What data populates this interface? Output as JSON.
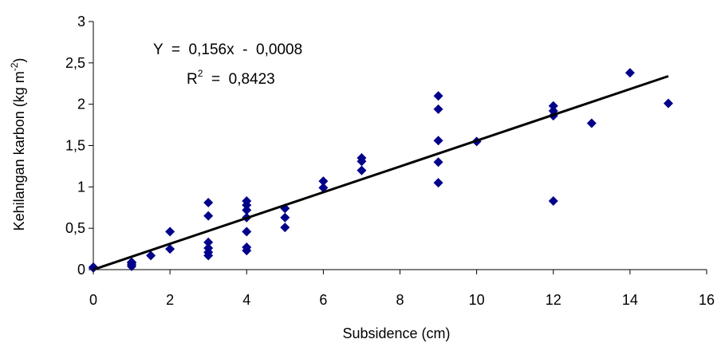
{
  "chart_data": {
    "type": "scatter",
    "xlabel": "Subsidence (cm)",
    "ylabel": {
      "prefix": "Kehilangan karbon (kg m",
      "superscript": "-2",
      "suffix": ")"
    },
    "xlim": [
      0,
      16
    ],
    "ylim": [
      0,
      3
    ],
    "xticks": [
      0,
      2,
      4,
      6,
      8,
      10,
      12,
      14,
      16
    ],
    "yticks": [
      0,
      0.5,
      1,
      1.5,
      2,
      2.5,
      3
    ],
    "xtick_labels": [
      "0",
      "2",
      "4",
      "6",
      "8",
      "10",
      "12",
      "14",
      "16"
    ],
    "ytick_labels": [
      "0",
      "0,5",
      "1",
      "1,5",
      "2",
      "2,5",
      "3"
    ],
    "grid": false,
    "legend": "none",
    "marker_color": "#00008B",
    "line_color": "#000000",
    "series": [
      {
        "marker": "diamond",
        "points": [
          [
            0,
            0.02
          ],
          [
            0,
            0.03
          ],
          [
            1,
            0.04
          ],
          [
            1,
            0.06
          ],
          [
            1,
            0.08
          ],
          [
            1,
            0.09
          ],
          [
            1.5,
            0.17
          ],
          [
            2,
            0.25
          ],
          [
            2,
            0.46
          ],
          [
            3,
            0.17
          ],
          [
            3,
            0.21
          ],
          [
            3,
            0.26
          ],
          [
            3,
            0.33
          ],
          [
            3,
            0.65
          ],
          [
            3,
            0.81
          ],
          [
            4,
            0.23
          ],
          [
            4,
            0.27
          ],
          [
            4,
            0.46
          ],
          [
            4,
            0.63
          ],
          [
            4,
            0.72
          ],
          [
            4,
            0.78
          ],
          [
            4,
            0.83
          ],
          [
            5,
            0.51
          ],
          [
            5,
            0.63
          ],
          [
            5,
            0.74
          ],
          [
            6,
            0.99
          ],
          [
            6,
            1.07
          ],
          [
            7,
            1.2
          ],
          [
            7,
            1.31
          ],
          [
            7,
            1.35
          ],
          [
            9,
            1.05
          ],
          [
            9,
            1.3
          ],
          [
            9,
            1.56
          ],
          [
            9,
            1.94
          ],
          [
            9,
            2.1
          ],
          [
            10,
            1.55
          ],
          [
            12,
            0.83
          ],
          [
            12,
            1.86
          ],
          [
            12,
            1.92
          ],
          [
            12,
            1.98
          ],
          [
            13,
            1.77
          ],
          [
            14,
            2.38
          ],
          [
            15,
            2.01
          ]
        ]
      }
    ],
    "trendline": {
      "slope": 0.156,
      "intercept": -0.0008,
      "x_range": [
        0,
        15
      ]
    },
    "annotations": {
      "equation": "Y  =  0,156x  -  0,0008",
      "r2_label": "R",
      "r2_sup": "2",
      "r2_value": "  =  0,8423"
    }
  }
}
